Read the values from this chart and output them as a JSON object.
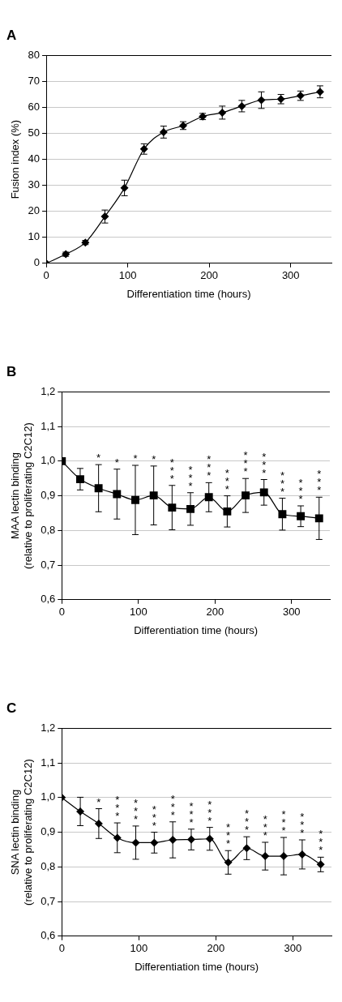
{
  "chart_data": [
    {
      "type": "line",
      "title": "A",
      "xlabel": "Differentiation time (hours)",
      "ylabel": "Fusion index (%)",
      "marker": "diamond",
      "grid": "y",
      "legend": false,
      "x": [
        0,
        24,
        48,
        72,
        96,
        120,
        144,
        168,
        192,
        216,
        240,
        264,
        288,
        312,
        336
      ],
      "xlim": [
        0,
        350
      ],
      "xticks": [
        0,
        100,
        200,
        300
      ],
      "ylim": [
        0,
        80
      ],
      "yticks": [
        0,
        10,
        20,
        30,
        40,
        50,
        60,
        70,
        80
      ],
      "series": [
        {
          "color": "#000000",
          "values": [
            0,
            3.5,
            8,
            18,
            29,
            44,
            50.5,
            53,
            56.5,
            58,
            60.5,
            62.8,
            63.2,
            64.5,
            66
          ],
          "errors": [
            null,
            0.8,
            0.8,
            2.5,
            3,
            2,
            2.3,
            1.5,
            1.2,
            2.5,
            2.2,
            3.2,
            1.8,
            1.8,
            2.3
          ]
        }
      ]
    },
    {
      "type": "line",
      "title": "B",
      "xlabel": "Differentiation time (hours)",
      "ylabel": "MAA lectin binding\n(relative to proliferating C2C12)",
      "marker": "square",
      "grid": "y",
      "legend": false,
      "x": [
        0,
        24,
        48,
        72,
        96,
        120,
        144,
        168,
        192,
        216,
        240,
        264,
        288,
        312,
        336
      ],
      "xlim": [
        0,
        350
      ],
      "xticks": [
        0,
        100,
        200,
        300
      ],
      "ylim": [
        0.6,
        1.2
      ],
      "yticks": [
        {
          "value": 0.6,
          "label": "0,6"
        },
        {
          "value": 0.7,
          "label": "0,7"
        },
        {
          "value": 0.8,
          "label": "0,8"
        },
        {
          "value": 0.9,
          "label": "0,9"
        },
        {
          "value": 1.0,
          "label": "1,0"
        },
        {
          "value": 1.1,
          "label": "1,1"
        },
        {
          "value": 1.2,
          "label": "1,2"
        }
      ],
      "series": [
        {
          "color": "#000000",
          "values": [
            1.0,
            0.948,
            0.922,
            0.905,
            0.888,
            0.901,
            0.866,
            0.862,
            0.896,
            0.855,
            0.901,
            0.91,
            0.847,
            0.841,
            0.835
          ],
          "errors": [
            null,
            0.031,
            0.068,
            0.072,
            0.1,
            0.085,
            0.064,
            0.047,
            0.042,
            0.045,
            0.049,
            0.037,
            0.046,
            0.03,
            0.061
          ],
          "value_labels": [
            null,
            null,
            "*",
            "*",
            "*",
            "*",
            "*\n*\n*",
            "*\n*\n*",
            "*\n*\n*",
            "*\n*\n*",
            "*\n*\n*",
            "*\n*\n*",
            "*\n*\n*",
            "*\n*\n*",
            "*\n*\n*"
          ]
        }
      ]
    },
    {
      "type": "line",
      "title": "C",
      "xlabel": "Differentiation time (hours)",
      "ylabel": "SNA lectin binding\n(relative to proliferating C2C12)",
      "marker": "diamond",
      "grid": "y",
      "legend": false,
      "x": [
        0,
        24,
        48,
        72,
        96,
        120,
        144,
        168,
        192,
        216,
        240,
        264,
        288,
        312,
        336
      ],
      "xlim": [
        0,
        350
      ],
      "xticks": [
        0,
        100,
        200,
        300
      ],
      "ylim": [
        0.6,
        1.2
      ],
      "yticks": [
        {
          "value": 0.6,
          "label": "0,6"
        },
        {
          "value": 0.7,
          "label": "0,7"
        },
        {
          "value": 0.8,
          "label": "0,8"
        },
        {
          "value": 0.9,
          "label": "0,9"
        },
        {
          "value": 1.0,
          "label": "1,0"
        },
        {
          "value": 1.1,
          "label": "1,1"
        },
        {
          "value": 1.2,
          "label": "1,2"
        }
      ],
      "series": [
        {
          "color": "#000000",
          "values": [
            1.0,
            0.96,
            0.925,
            0.884,
            0.87,
            0.87,
            0.878,
            0.879,
            0.881,
            0.813,
            0.854,
            0.831,
            0.831,
            0.836,
            0.807
          ],
          "errors": [
            null,
            0.041,
            0.043,
            0.043,
            0.048,
            0.03,
            0.052,
            0.03,
            0.033,
            0.034,
            0.033,
            0.04,
            0.054,
            0.042,
            0.021
          ],
          "value_labels": [
            null,
            null,
            "*",
            "*\n*\n*",
            "*\n*\n*",
            "*\n*\n*",
            "*\n*\n*",
            "*\n*\n*",
            "*\n*\n*",
            "*\n*\n*",
            "*\n*\n*",
            "*\n*\n*",
            "*\n*\n*",
            "*\n*\n*",
            "*\n*\n*"
          ]
        }
      ]
    }
  ]
}
